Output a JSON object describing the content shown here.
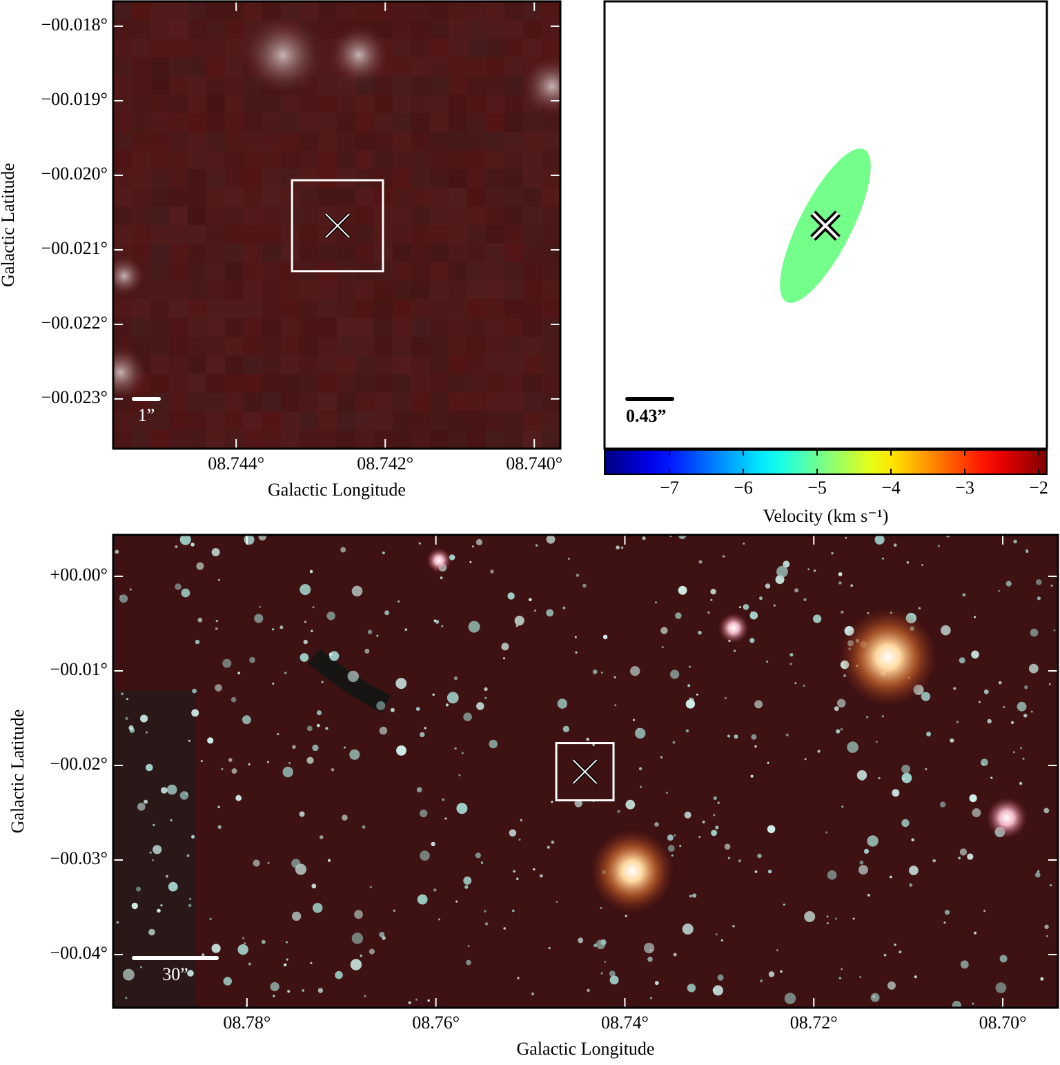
{
  "chart_data": [
    {
      "type": "image",
      "xlabel": "Galactic Longitude",
      "ylabel": "Galactic Latitude",
      "xlim": [
        8.74565,
        8.73965
      ],
      "ylim": [
        -0.023667,
        -0.017667
      ],
      "xticks": [
        {
          "value": 8.744,
          "label": "08.744°"
        },
        {
          "value": 8.742,
          "label": "08.742°"
        },
        {
          "value": 8.74,
          "label": "08.740°"
        }
      ],
      "yticks": [
        {
          "value": -0.018,
          "label": "−00.018°"
        },
        {
          "value": -0.019,
          "label": "−00.019°"
        },
        {
          "value": -0.02,
          "label": "−00.020°"
        },
        {
          "value": -0.021,
          "label": "−00.021°"
        },
        {
          "value": -0.022,
          "label": "−00.022°"
        },
        {
          "value": -0.023,
          "label": "−00.023°"
        }
      ],
      "source": {
        "lon": 8.74264,
        "lat": -0.020676
      },
      "box_size": 0.00122,
      "scale_bar_label": "1”"
    },
    {
      "type": "ellipse",
      "velocity": -4.95,
      "scale_bar_label": "0.43”",
      "colorbar_label": "Velocity (km s⁻¹)",
      "colorbar_lim": [
        -7.879,
        -1.888
      ],
      "colorbar_ticks": [
        {
          "value": -7,
          "label": "−7"
        },
        {
          "value": -6,
          "label": "−6"
        },
        {
          "value": -5,
          "label": "−5"
        },
        {
          "value": -4,
          "label": "−4"
        },
        {
          "value": -3,
          "label": "−3"
        },
        {
          "value": -2,
          "label": "−2"
        }
      ]
    },
    {
      "type": "image",
      "xlabel": "Galactic Longitude",
      "ylabel": "Galactic Latitude",
      "xlim": [
        8.79416,
        8.69416
      ],
      "ylim": [
        -0.04562,
        0.00438
      ],
      "xticks": [
        {
          "value": 8.78,
          "label": "08.78°"
        },
        {
          "value": 8.76,
          "label": "08.76°"
        },
        {
          "value": 8.74,
          "label": "08.74°"
        },
        {
          "value": 8.72,
          "label": "08.72°"
        },
        {
          "value": 8.7,
          "label": "08.70°"
        }
      ],
      "yticks": [
        {
          "value": 0.0,
          "label": "+00.00°"
        },
        {
          "value": -0.01,
          "label": "−00.01°"
        },
        {
          "value": -0.02,
          "label": "−00.02°"
        },
        {
          "value": -0.03,
          "label": "−00.03°"
        },
        {
          "value": -0.04,
          "label": "−00.04°"
        }
      ],
      "source": {
        "lon": 8.74423,
        "lat": -0.02066
      },
      "box_size": 0.00606,
      "scale_bar_label": "30”"
    }
  ]
}
